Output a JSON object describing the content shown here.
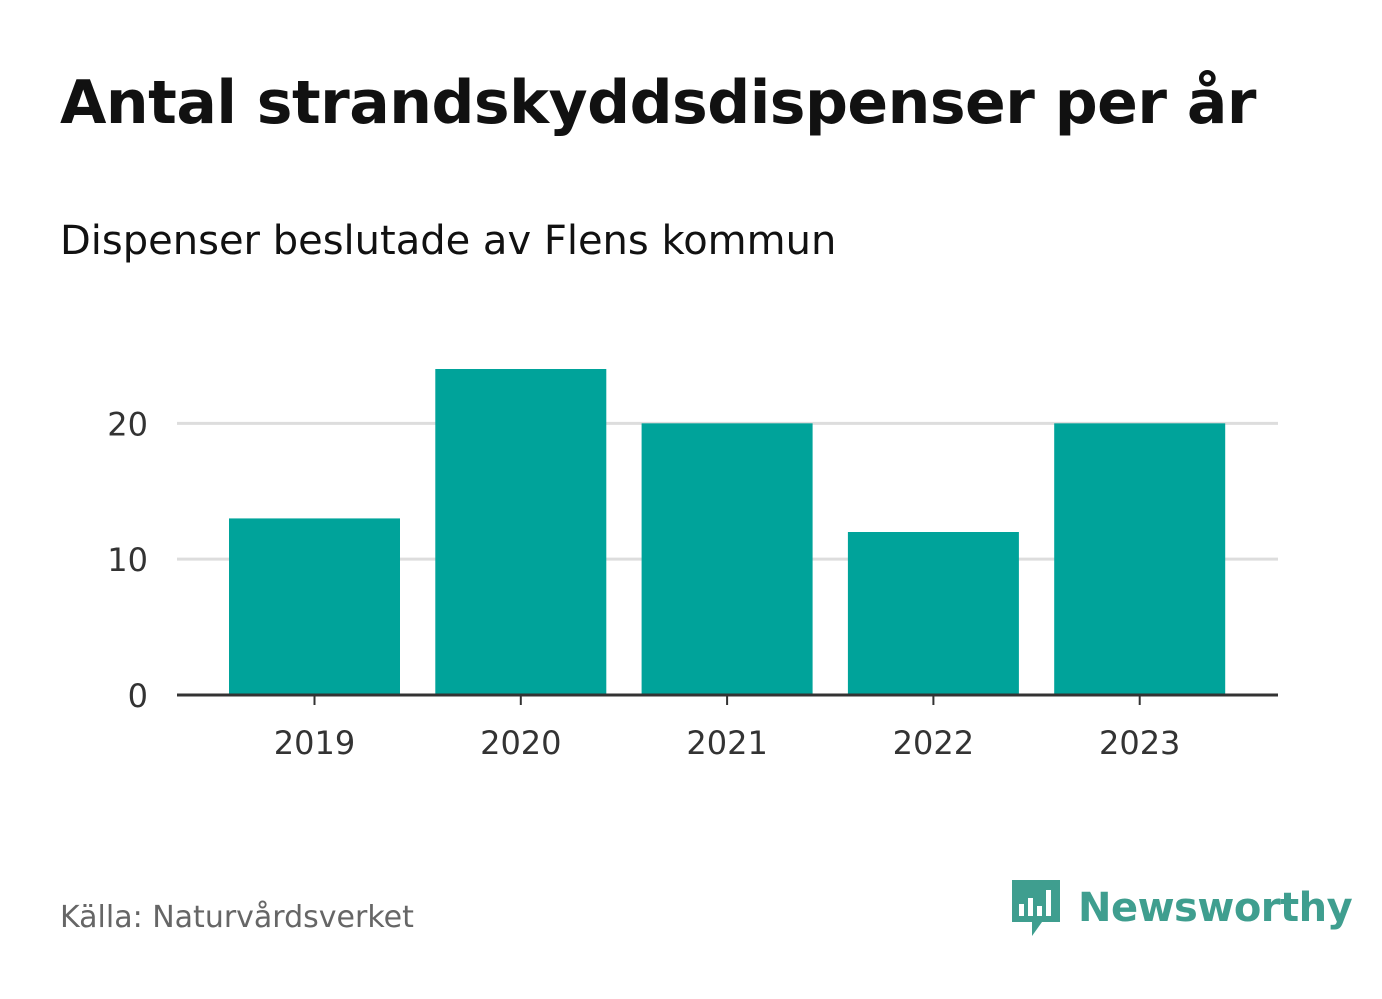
{
  "title": "Antal strandskyddsdispenser per år",
  "subtitle": "Dispenser beslutade av Flens kommun",
  "source": "Källa: Naturvårdsverket",
  "brand": {
    "name": "Newsworthy",
    "icon": "newsworthy-logo-icon"
  },
  "colors": {
    "bar": "#00a39a",
    "grid": "#dddddd",
    "axis": "#333333",
    "brand": "#3f9e8f",
    "text": "#111111",
    "muted": "#666666"
  },
  "chart_data": {
    "type": "bar",
    "title": "Antal strandskyddsdispenser per år",
    "subtitle": "Dispenser beslutade av Flens kommun",
    "categories": [
      "2019",
      "2020",
      "2021",
      "2022",
      "2023"
    ],
    "values": [
      13,
      24,
      20,
      12,
      20
    ],
    "yticks": [
      0,
      10,
      20
    ],
    "ylim": [
      0,
      24
    ],
    "xlabel": "",
    "ylabel": "",
    "grid": true,
    "legend": "none"
  }
}
